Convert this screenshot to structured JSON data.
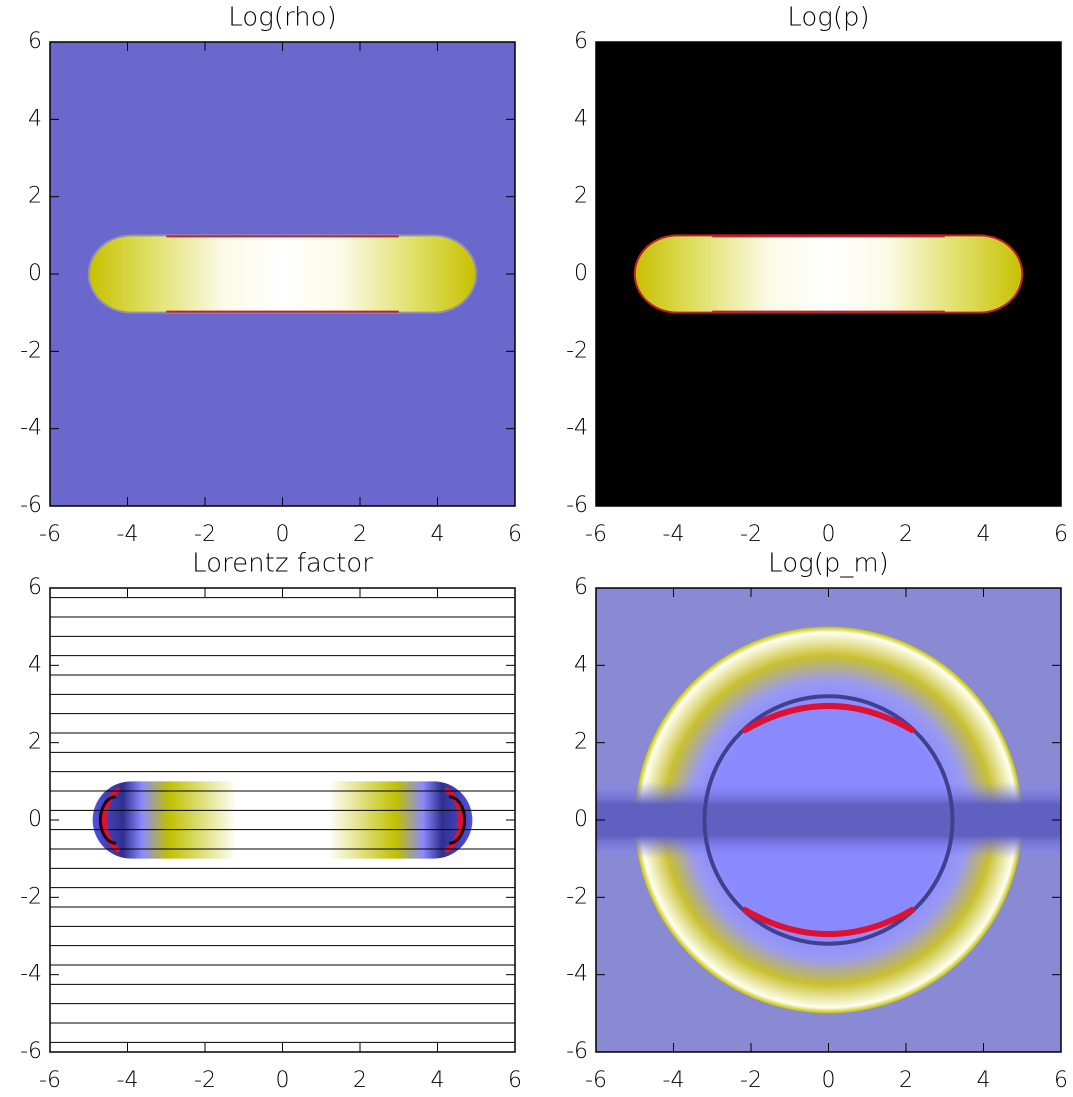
{
  "chart_data": [
    {
      "type": "heatmap",
      "title": "Log(rho)",
      "background": "#6a68cc",
      "xlim": [
        -6,
        6
      ],
      "ylim": [
        -6,
        6
      ],
      "xticks": [
        -6,
        -4,
        -2,
        0,
        2,
        4,
        6
      ],
      "yticks": [
        -6,
        -4,
        -2,
        0,
        2,
        4,
        6
      ]
    },
    {
      "type": "heatmap",
      "title": "Log(p)",
      "background": "#000000",
      "xlim": [
        -6,
        6
      ],
      "ylim": [
        -6,
        6
      ],
      "xticks": [
        -6,
        -4,
        -2,
        0,
        2,
        4,
        6
      ],
      "yticks": [
        -6,
        -4,
        -2,
        0,
        2,
        4,
        6
      ]
    },
    {
      "type": "heatmap",
      "title": "Lorentz factor",
      "background": "#ffffff",
      "xlim": [
        -6,
        6
      ],
      "ylim": [
        -6,
        6
      ],
      "xticks": [
        -6,
        -4,
        -2,
        0,
        2,
        4,
        6
      ],
      "yticks": [
        -6,
        -4,
        -2,
        0,
        2,
        4,
        6
      ]
    },
    {
      "type": "heatmap",
      "title": "Log(p_m)",
      "background": "#8a8ad4",
      "xlim": [
        -6,
        6
      ],
      "ylim": [
        -6,
        6
      ],
      "xticks": [
        -6,
        -4,
        -2,
        0,
        2,
        4,
        6
      ],
      "yticks": [
        -6,
        -4,
        -2,
        0,
        2,
        4,
        6
      ]
    }
  ]
}
